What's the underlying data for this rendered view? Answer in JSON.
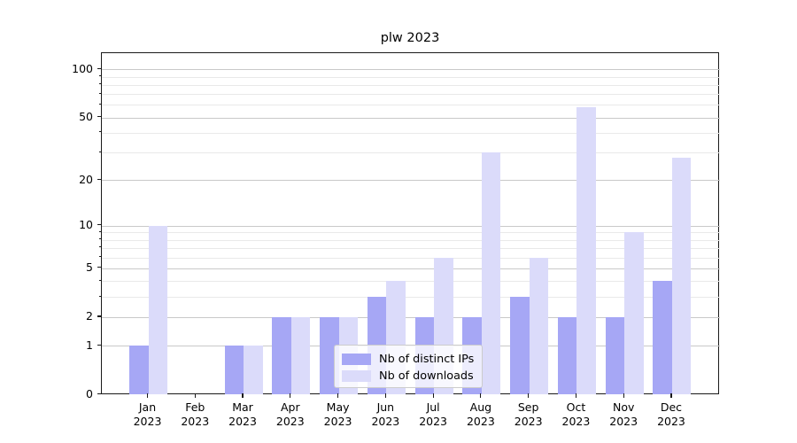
{
  "chart_data": {
    "type": "bar",
    "title": "plw 2023",
    "categories": [
      "Jan 2023",
      "Feb 2023",
      "Mar 2023",
      "Apr 2023",
      "May 2023",
      "Jun 2023",
      "Jul 2023",
      "Aug 2023",
      "Sep 2023",
      "Oct 2023",
      "Nov 2023",
      "Dec 2023"
    ],
    "series": [
      {
        "name": "Nb of distinct IPs",
        "color": "#a6a7f5",
        "values": [
          1,
          0,
          1,
          2,
          2,
          3,
          2,
          2,
          3,
          2,
          2,
          4
        ]
      },
      {
        "name": "Nb of downloads",
        "color": "#dbdbfa",
        "values": [
          10,
          0,
          1,
          2,
          2,
          4,
          6,
          30,
          6,
          58,
          9,
          28
        ]
      }
    ],
    "xlabel": "",
    "ylabel": "",
    "yscale": "log1p",
    "ylim": [
      0,
      125
    ],
    "yticks": [
      0,
      1,
      2,
      5,
      10,
      20,
      50,
      100
    ],
    "minor_gridlines": [
      3,
      4,
      6,
      7,
      8,
      9,
      30,
      40,
      60,
      70,
      80,
      90
    ],
    "grid": true,
    "legend_position": "lower center",
    "style": {
      "major_grid_color": "#c9c9c9",
      "minor_grid_color": "#e9e9e9",
      "axis_color": "#1a1a1a",
      "background": "#ffffff"
    }
  }
}
